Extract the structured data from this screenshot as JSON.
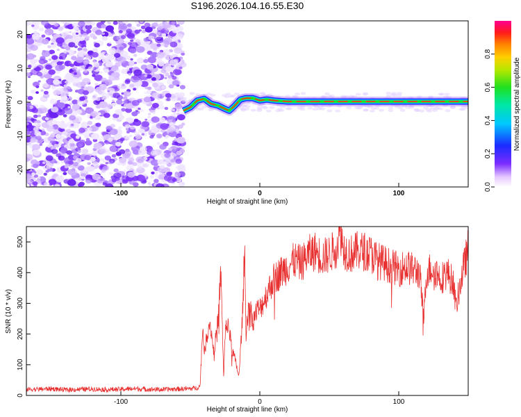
{
  "title": "S196.2026.104.16.55.E30",
  "spectrogram": {
    "type": "heatmap",
    "xlabel": "Height of straight line (km)",
    "ylabel": "Frequency (Hz)",
    "xlim": [
      -168,
      150
    ],
    "ylim": [
      -25,
      24
    ],
    "x_ticks": [
      "-100",
      "0",
      "100"
    ],
    "x_tick_values": [
      -100,
      0,
      100
    ],
    "y_ticks": [
      "20",
      "10",
      "0",
      "-10",
      "-20"
    ],
    "y_tick_values": [
      20,
      10,
      0,
      -10,
      -20
    ],
    "noise_region_x": [
      -168,
      -55
    ],
    "signal_track": {
      "x": [
        -55,
        -50,
        -45,
        -40,
        -35,
        -30,
        -25,
        -22,
        -18,
        -14,
        -10,
        -5,
        0,
        5,
        10,
        20,
        40,
        60,
        80,
        100,
        120,
        150
      ],
      "freq": [
        -2.5,
        -1.5,
        0.5,
        1,
        -0.5,
        -1,
        -2,
        -2.5,
        -1,
        0.8,
        1.2,
        1.2,
        0.5,
        0.8,
        0.5,
        0.2,
        0.2,
        0.2,
        0.2,
        0.2,
        0.2,
        0.2
      ]
    }
  },
  "colorbar": {
    "label": "Normalized spectral amplitude",
    "ticks": [
      "0.0",
      "0.2",
      "0.4",
      "0.6",
      "0.8"
    ],
    "tick_values": [
      0,
      0.2,
      0.4,
      0.6,
      0.8
    ],
    "range": [
      0,
      1
    ]
  },
  "chart_data": {
    "type": "line",
    "title": "",
    "xlabel": "Height of straight line (km)",
    "ylabel": "SNR (10 * v/v)",
    "xlim": [
      -168,
      150
    ],
    "ylim": [
      0,
      550
    ],
    "x_ticks": [
      "-100",
      "0",
      "100"
    ],
    "x_tick_values": [
      -100,
      0,
      100
    ],
    "y_ticks": [
      "0",
      "100",
      "200",
      "300",
      "400",
      "500"
    ],
    "y_tick_values": [
      0,
      100,
      200,
      300,
      400,
      500
    ],
    "series": [
      {
        "name": "SNR",
        "color": "#e83030",
        "x": [
          -168,
          -160,
          -150,
          -140,
          -130,
          -120,
          -110,
          -100,
          -90,
          -80,
          -70,
          -60,
          -50,
          -45,
          -43,
          -41,
          -40,
          -38,
          -36,
          -35,
          -33,
          -30,
          -28,
          -26,
          -25,
          -23,
          -20,
          -18,
          -15,
          -12,
          -11,
          -10,
          -8,
          -5,
          -2,
          0,
          5,
          10,
          15,
          20,
          25,
          30,
          35,
          40,
          45,
          50,
          55,
          58,
          60,
          65,
          70,
          75,
          80,
          85,
          90,
          95,
          100,
          105,
          110,
          115,
          118,
          120,
          125,
          130,
          135,
          140,
          141,
          145,
          150
        ],
        "values": [
          20,
          20,
          22,
          18,
          20,
          21,
          19,
          20,
          22,
          20,
          19,
          21,
          22,
          25,
          30,
          230,
          130,
          200,
          240,
          210,
          140,
          250,
          400,
          60,
          200,
          240,
          150,
          120,
          60,
          300,
          500,
          200,
          300,
          240,
          280,
          280,
          330,
          380,
          400,
          420,
          440,
          430,
          460,
          470,
          450,
          460,
          480,
          540,
          480,
          460,
          470,
          470,
          460,
          440,
          430,
          420,
          410,
          420,
          410,
          400,
          250,
          400,
          420,
          380,
          400,
          360,
          280,
          380,
          480
        ]
      }
    ]
  }
}
